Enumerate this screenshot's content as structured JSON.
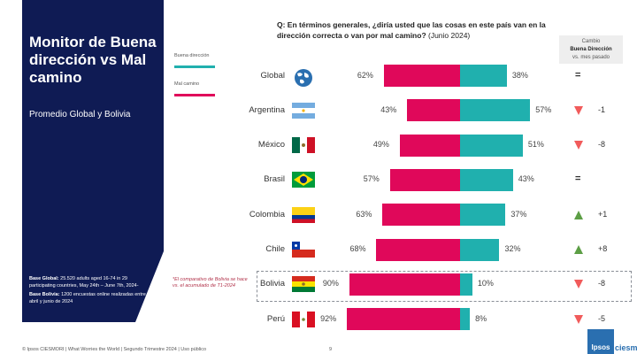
{
  "panel": {
    "title": "Monitor de Buena dirección vs Mal camino",
    "subtitle": "Promedio Global y Bolivia",
    "base_global_label": "Base Global:",
    "base_global_text": "25.520 adults aged 16-74 in 29 participating countries, May 24th – June 7th, 2024-",
    "base_bolivia_label": "Base Bolivia:",
    "base_bolivia_text": "1200 encuestas online realizadas entre abril y junio de 2024"
  },
  "legend": {
    "good": "Buena dirección",
    "bad": "Mal camino"
  },
  "question": {
    "bold": "Q: En términos generales, ¿diría usted que las cosas en este país van en la dirección correcta o van por mal camino?",
    "suffix": " (Junio 2024)"
  },
  "change_header": {
    "line1": "Cambio",
    "line2": "Buena Dirección",
    "line3": "vs. mes pasado"
  },
  "note": "*El comparativo de Bolivia se hace vs. el acumulado de T1-2024",
  "colors": {
    "good": "#20b0ae",
    "bad": "#e0085a",
    "up": "#5c9e45",
    "down": "#f15b5b",
    "navy": "#0f1b54"
  },
  "chart_data": {
    "type": "bar",
    "orientation": "horizontal-diverging",
    "title": "Q: En términos generales, ¿diría usted que las cosas en este país van en la dirección correcta o van por mal camino? (Junio 2024)",
    "categories": [
      "Global",
      "Argentina",
      "México",
      "Brasil",
      "Colombia",
      "Chile",
      "Bolivia",
      "Perú"
    ],
    "series": [
      {
        "name": "Mal camino",
        "values": [
          62,
          43,
          49,
          57,
          63,
          68,
          90,
          92
        ]
      },
      {
        "name": "Buena dirección",
        "values": [
          38,
          57,
          51,
          43,
          37,
          32,
          10,
          8
        ]
      }
    ],
    "labels_bad": [
      "62%",
      "43%",
      "49%",
      "57%",
      "63%",
      "68%",
      "90%",
      "92%"
    ],
    "labels_good": [
      "38%",
      "57%",
      "51%",
      "43%",
      "37%",
      "32%",
      "10%",
      "8%"
    ],
    "change": [
      {
        "dir": "equal",
        "text": "="
      },
      {
        "dir": "down",
        "text": "-1"
      },
      {
        "dir": "down",
        "text": "-8"
      },
      {
        "dir": "equal",
        "text": "="
      },
      {
        "dir": "up",
        "text": "+1"
      },
      {
        "dir": "up",
        "text": "+8"
      },
      {
        "dir": "down",
        "text": "-8"
      },
      {
        "dir": "down",
        "text": "-5"
      }
    ],
    "flags": [
      "globe-icon",
      "flag-argentina",
      "flag-mexico",
      "flag-brazil",
      "flag-colombia",
      "flag-chile",
      "flag-bolivia",
      "flag-peru"
    ],
    "unit": "%",
    "xlim": [
      0,
      100
    ],
    "legend": "left"
  },
  "footer": "© Ipsos CIESMORI | What Worries the World | Segundo Trimestre 2024 | Uso público",
  "page_number": "9",
  "logo": {
    "brand": "Ipsos",
    "partner": "ciesmori"
  }
}
